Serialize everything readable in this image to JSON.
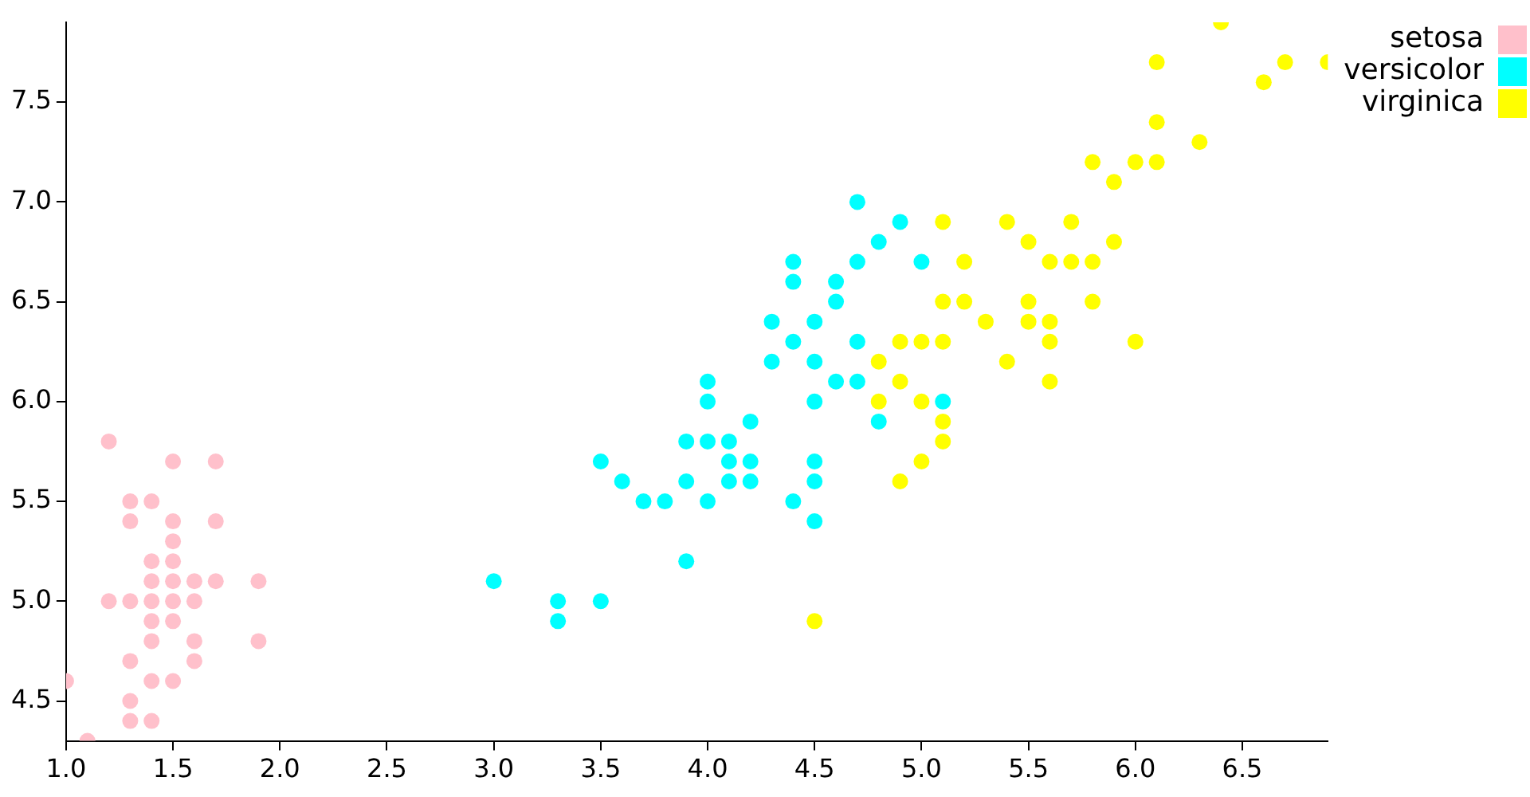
{
  "chart_data": {
    "type": "scatter",
    "xlim": [
      1.0,
      6.9
    ],
    "ylim": [
      4.3,
      7.9
    ],
    "xticks": [
      {
        "value": 1.0,
        "label": "1.0"
      },
      {
        "value": 1.5,
        "label": "1.5"
      },
      {
        "value": 2.0,
        "label": "2.0"
      },
      {
        "value": 2.5,
        "label": "2.5"
      },
      {
        "value": 3.0,
        "label": "3.0"
      },
      {
        "value": 3.5,
        "label": "3.5"
      },
      {
        "value": 4.0,
        "label": "4.0"
      },
      {
        "value": 4.5,
        "label": "4.5"
      },
      {
        "value": 5.0,
        "label": "5.0"
      },
      {
        "value": 5.5,
        "label": "5.5"
      },
      {
        "value": 6.0,
        "label": "6.0"
      },
      {
        "value": 6.5,
        "label": "6.5"
      }
    ],
    "yticks": [
      {
        "value": 4.5,
        "label": "4.5"
      },
      {
        "value": 5.0,
        "label": "5.0"
      },
      {
        "value": 5.5,
        "label": "5.5"
      },
      {
        "value": 6.0,
        "label": "6.0"
      },
      {
        "value": 6.5,
        "label": "6.5"
      },
      {
        "value": 7.0,
        "label": "7.0"
      },
      {
        "value": 7.5,
        "label": "7.5"
      }
    ],
    "grid": false,
    "legend": "top right",
    "marker": "circle",
    "series": [
      {
        "name": "setosa",
        "color": "#ffc0cb",
        "x": [
          1.4,
          1.4,
          1.3,
          1.5,
          1.4,
          1.7,
          1.4,
          1.5,
          1.4,
          1.5,
          1.5,
          1.6,
          1.4,
          1.1,
          1.2,
          1.5,
          1.3,
          1.7,
          1.5,
          1.0,
          1.7,
          1.9,
          1.6,
          1.5,
          1.4,
          1.6,
          1.4,
          1.2,
          1.3,
          1.3,
          1.3,
          1.3,
          1.9,
          1.6,
          1.5
        ],
        "values": [
          5.1,
          4.9,
          4.7,
          4.6,
          5.0,
          5.4,
          4.6,
          5.0,
          4.4,
          4.9,
          5.4,
          4.8,
          4.8,
          4.3,
          5.8,
          5.7,
          5.4,
          5.7,
          5.1,
          4.6,
          5.1,
          4.8,
          5.0,
          5.2,
          5.2,
          4.7,
          5.5,
          5.0,
          5.5,
          4.4,
          5.0,
          4.5,
          5.1,
          5.1,
          5.3
        ]
      },
      {
        "name": "versicolor",
        "color": "#00ffff",
        "x": [
          4.7,
          4.5,
          4.9,
          4.0,
          4.6,
          4.5,
          4.7,
          3.3,
          4.6,
          3.9,
          3.5,
          4.2,
          4.0,
          4.7,
          3.6,
          4.4,
          4.5,
          4.1,
          4.5,
          3.9,
          4.8,
          4.0,
          4.3,
          4.4,
          4.8,
          5.0,
          4.5,
          3.5,
          3.8,
          3.7,
          3.9,
          5.1,
          4.5,
          4.7,
          4.4,
          4.1,
          4.4,
          4.6,
          4.0,
          3.3,
          4.2,
          4.2,
          4.3,
          3.0,
          4.1
        ],
        "values": [
          7.0,
          6.4,
          6.9,
          5.5,
          6.5,
          5.7,
          6.3,
          4.9,
          6.6,
          5.2,
          5.0,
          5.9,
          6.0,
          6.1,
          5.6,
          6.7,
          5.6,
          5.8,
          6.2,
          5.6,
          5.9,
          6.1,
          6.4,
          6.6,
          6.8,
          6.7,
          6.0,
          5.7,
          5.5,
          5.5,
          5.8,
          6.0,
          5.4,
          6.7,
          6.3,
          5.6,
          5.5,
          6.1,
          5.8,
          5.0,
          5.6,
          5.7,
          6.2,
          5.1,
          5.7
        ]
      },
      {
        "name": "virginica",
        "color": "#ffff00",
        "x": [
          6.0,
          5.1,
          5.9,
          5.6,
          5.8,
          6.6,
          4.5,
          6.3,
          5.8,
          6.1,
          5.1,
          5.3,
          5.5,
          5.0,
          5.5,
          6.7,
          6.9,
          5.0,
          5.7,
          4.9,
          4.9,
          5.7,
          6.0,
          4.8,
          4.9,
          5.6,
          5.8,
          6.1,
          6.4,
          5.1,
          5.6,
          6.1,
          5.5,
          4.8,
          5.4,
          5.6,
          5.1,
          5.9,
          5.2,
          5.0,
          5.2,
          5.4,
          5.1
        ],
        "values": [
          6.3,
          5.8,
          7.1,
          6.3,
          6.5,
          7.6,
          4.9,
          7.3,
          6.7,
          7.2,
          6.5,
          6.4,
          6.8,
          5.7,
          6.5,
          7.7,
          7.7,
          6.0,
          6.9,
          5.6,
          6.3,
          6.7,
          7.2,
          6.2,
          6.1,
          6.4,
          7.2,
          7.4,
          7.9,
          6.3,
          6.1,
          7.7,
          6.4,
          6.0,
          6.9,
          6.7,
          6.9,
          6.8,
          6.7,
          6.3,
          6.5,
          6.2,
          5.9
        ]
      }
    ]
  }
}
